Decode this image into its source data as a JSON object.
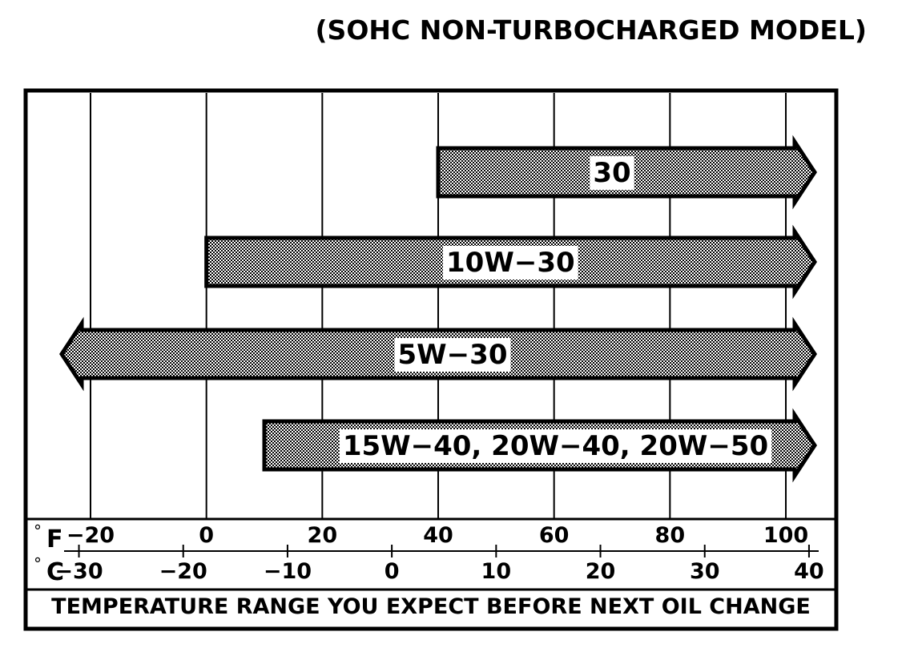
{
  "chart_data": {
    "type": "bar",
    "title": "(SOHC NON-TURBOCHARGED MODEL)",
    "xlabel": "TEMPERATURE RANGE YOU EXPECT BEFORE NEXT OIL CHANGE",
    "degree_symbol": "°",
    "fahrenheit_unit": "F",
    "celsius_unit": "C",
    "xlim_f": [
      -20,
      100
    ],
    "fahrenheit_ticks": [
      {
        "value": -20,
        "label": "−20"
      },
      {
        "value": 0,
        "label": "0"
      },
      {
        "value": 20,
        "label": "20"
      },
      {
        "value": 40,
        "label": "40"
      },
      {
        "value": 60,
        "label": "60"
      },
      {
        "value": 80,
        "label": "80"
      },
      {
        "value": 100,
        "label": "100"
      }
    ],
    "celsius_ticks": [
      {
        "value": -30,
        "label": "−30"
      },
      {
        "value": -20,
        "label": "−20"
      },
      {
        "value": -10,
        "label": "−10"
      },
      {
        "value": 0,
        "label": "0"
      },
      {
        "value": 10,
        "label": "10"
      },
      {
        "value": 20,
        "label": "20"
      },
      {
        "value": 30,
        "label": "30"
      },
      {
        "value": 40,
        "label": "40"
      }
    ],
    "grid": true,
    "series": [
      {
        "name": "30",
        "start_f": 40,
        "end_f": 100,
        "open_left": false,
        "open_right": true
      },
      {
        "name": "10W−30",
        "start_f": 0,
        "end_f": 100,
        "open_left": false,
        "open_right": true
      },
      {
        "name": "5W−30",
        "start_f": -20,
        "end_f": 100,
        "open_left": true,
        "open_right": true
      },
      {
        "name": "15W−40, 20W−40, 20W−50",
        "start_f": 10,
        "end_f": 100,
        "open_left": false,
        "open_right": true
      }
    ]
  }
}
